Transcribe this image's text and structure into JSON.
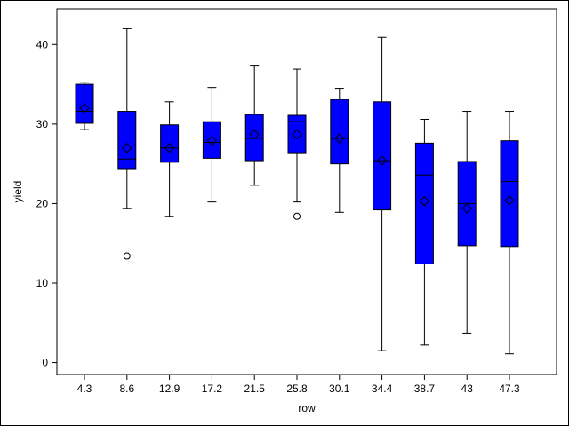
{
  "chart_data": {
    "type": "box",
    "xlabel": "row",
    "ylabel": "yield",
    "ylim": [
      -1.5,
      44.5
    ],
    "yticks": [
      0,
      10,
      20,
      30,
      40
    ],
    "grid": false,
    "legend": "none",
    "box_color": "#0000ff",
    "categories": [
      "4.3",
      "8.6",
      "12.9",
      "17.2",
      "21.5",
      "25.8",
      "30.1",
      "34.4",
      "38.7",
      "43",
      "47.3"
    ],
    "boxes": [
      {
        "category": "4.3",
        "min": 29.3,
        "q1": 30.1,
        "median": 31.6,
        "q3": 35.0,
        "max": 35.2,
        "mean": 32.0,
        "outliers": []
      },
      {
        "category": "8.6",
        "min": 19.4,
        "q1": 24.4,
        "median": 25.6,
        "q3": 31.6,
        "max": 42.0,
        "mean": 27.0,
        "outliers": [
          13.4
        ]
      },
      {
        "category": "12.9",
        "min": 18.4,
        "q1": 25.2,
        "median": 27.0,
        "q3": 29.9,
        "max": 32.8,
        "mean": 27.0,
        "outliers": []
      },
      {
        "category": "17.2",
        "min": 20.2,
        "q1": 25.7,
        "median": 27.7,
        "q3": 30.3,
        "max": 34.6,
        "mean": 27.9,
        "outliers": []
      },
      {
        "category": "21.5",
        "min": 22.3,
        "q1": 25.4,
        "median": 28.2,
        "q3": 31.2,
        "max": 37.4,
        "mean": 28.7,
        "outliers": []
      },
      {
        "category": "25.8",
        "min": 20.2,
        "q1": 26.4,
        "median": 30.3,
        "q3": 31.1,
        "max": 36.9,
        "mean": 28.7,
        "outliers": [
          18.4
        ]
      },
      {
        "category": "30.1",
        "min": 18.9,
        "q1": 25.0,
        "median": 28.2,
        "q3": 33.1,
        "max": 34.5,
        "mean": 28.2,
        "outliers": []
      },
      {
        "category": "34.4",
        "min": 1.5,
        "q1": 19.2,
        "median": 25.4,
        "q3": 32.8,
        "max": 40.9,
        "mean": 25.4,
        "outliers": []
      },
      {
        "category": "38.7",
        "min": 2.2,
        "q1": 12.4,
        "median": 23.6,
        "q3": 27.6,
        "max": 30.6,
        "mean": 20.3,
        "outliers": []
      },
      {
        "category": "43",
        "min": 3.7,
        "q1": 14.7,
        "median": 20.0,
        "q3": 25.3,
        "max": 31.6,
        "mean": 19.4,
        "outliers": []
      },
      {
        "category": "47.3",
        "min": 1.1,
        "q1": 14.6,
        "median": 22.8,
        "q3": 27.9,
        "max": 31.6,
        "mean": 20.4,
        "outliers": []
      }
    ]
  }
}
